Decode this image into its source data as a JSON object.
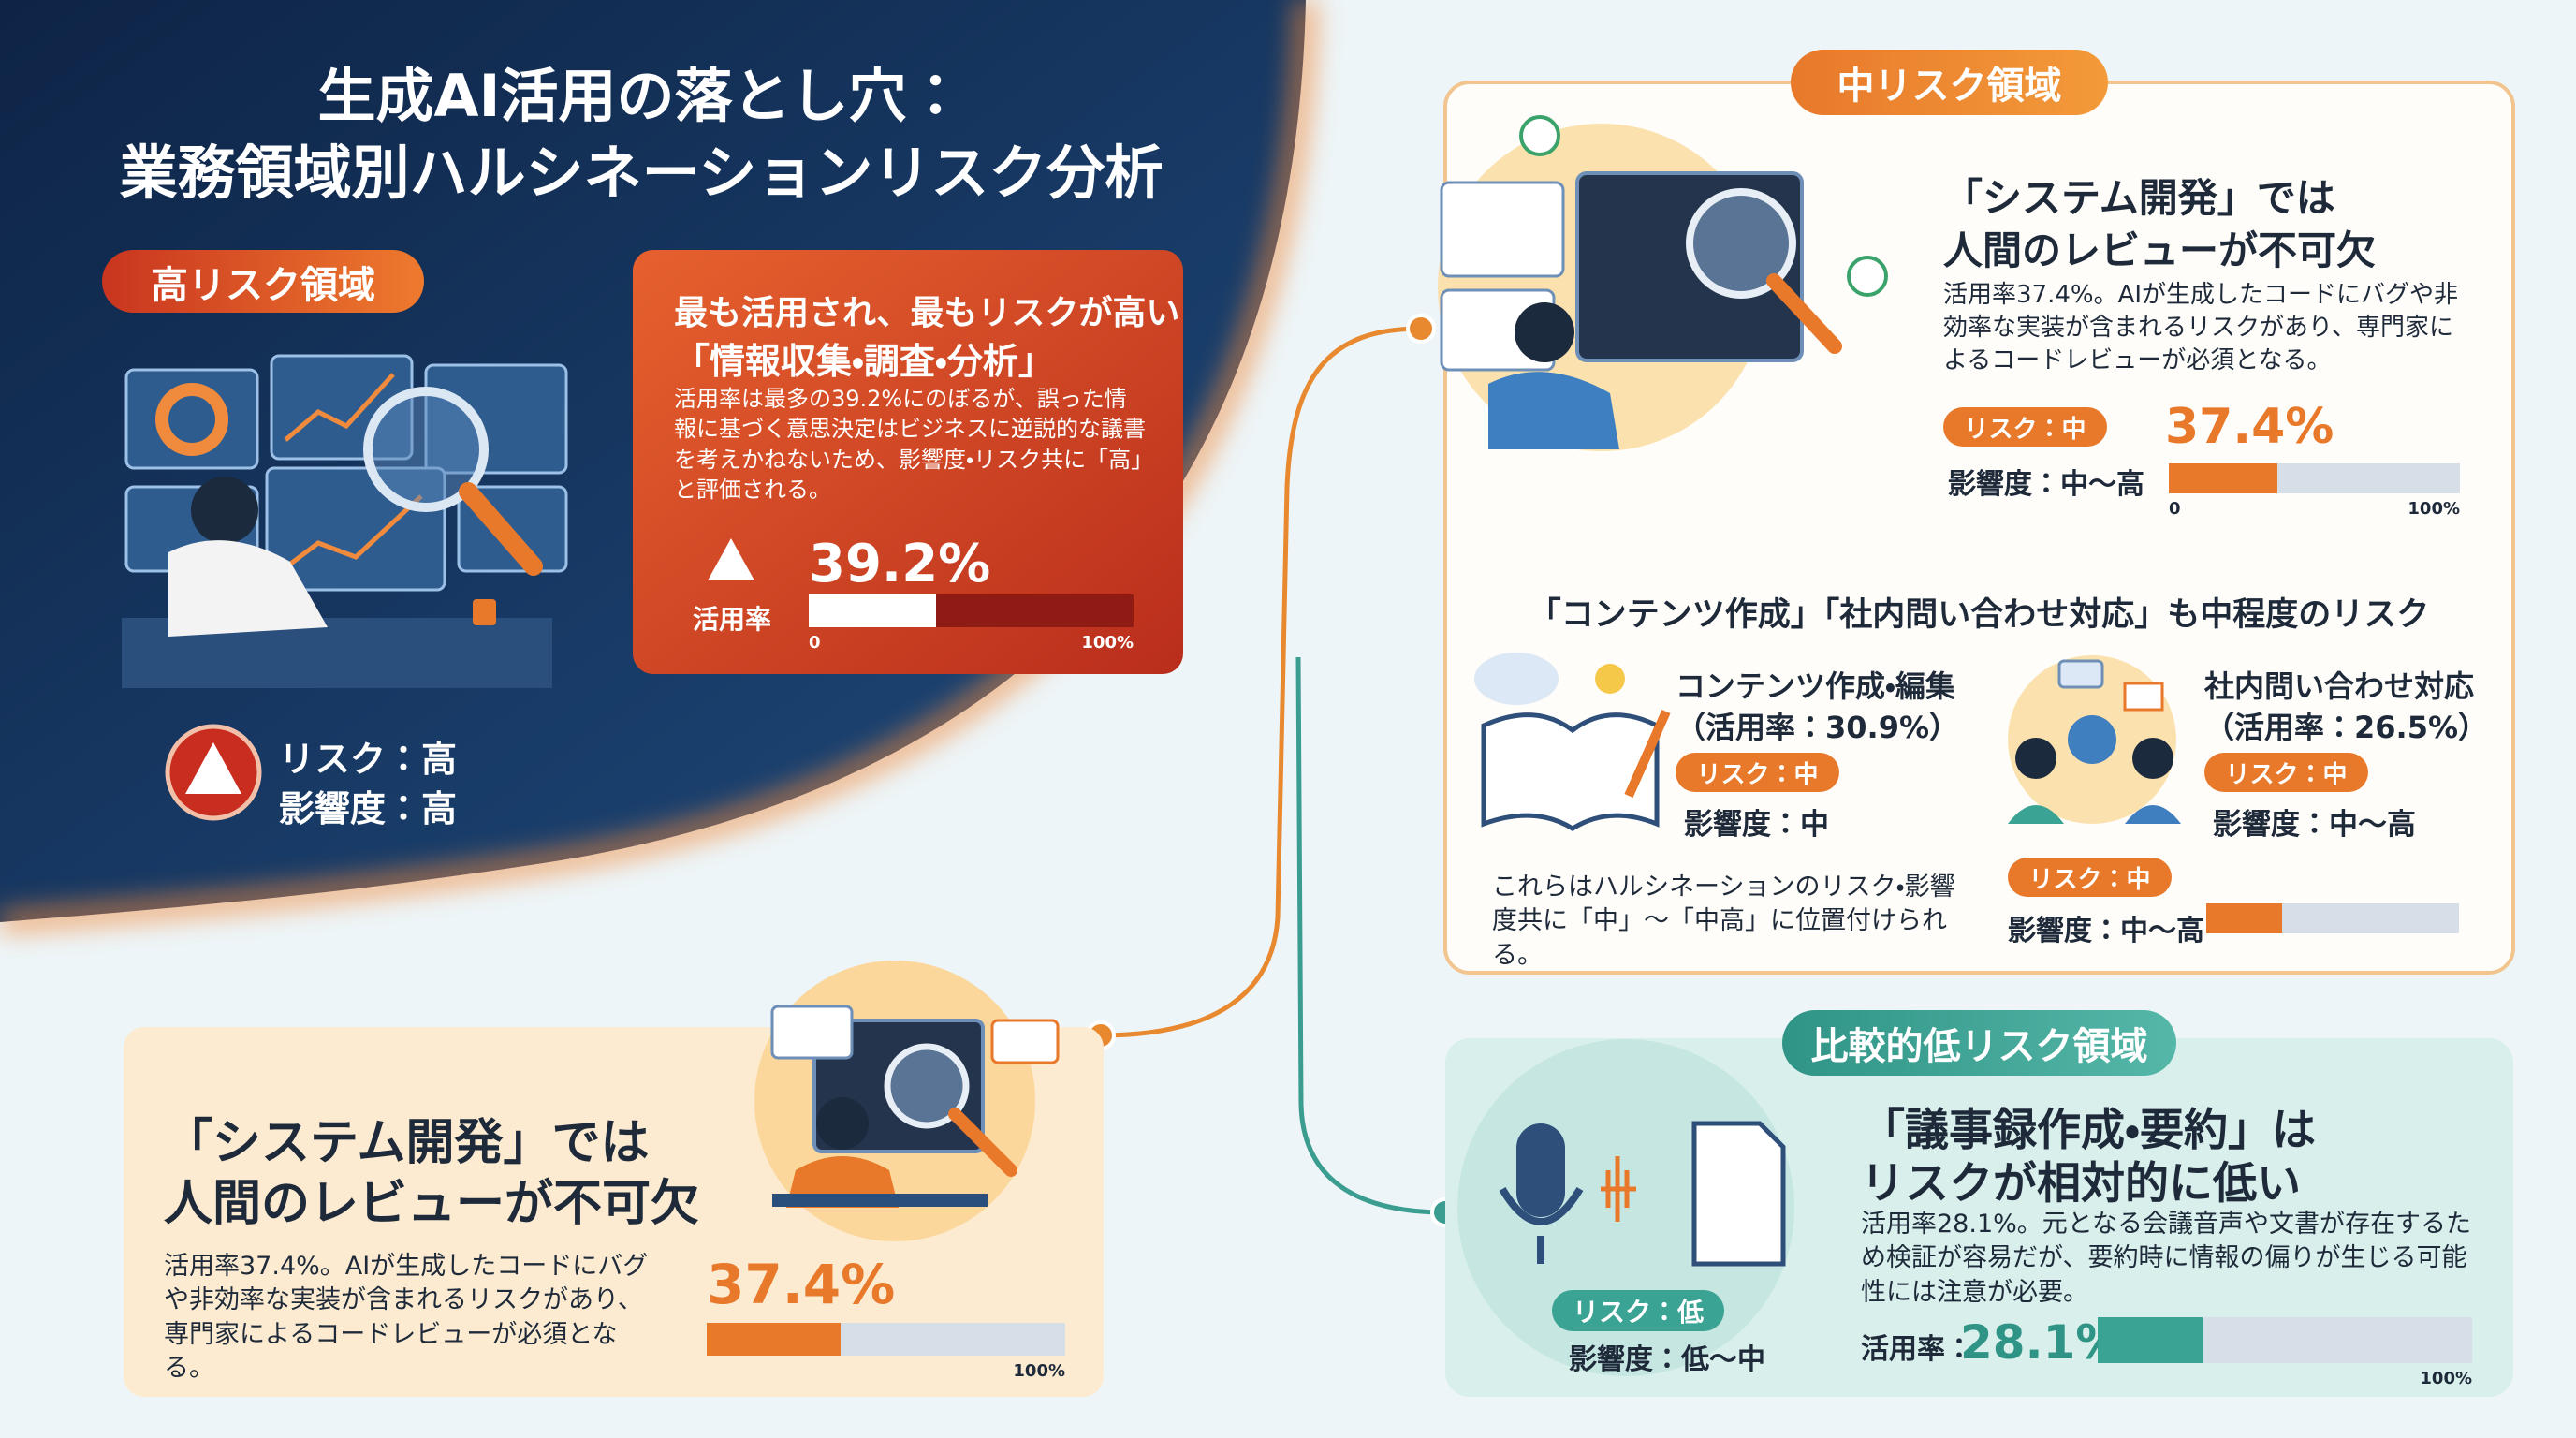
{
  "header": {
    "title": [
      "生成AI活用の落とし穴：",
      "業務領域別ハルシネーションリスク分析"
    ]
  },
  "bar_scale": [
    0,
    100
  ],
  "high_risk": {
    "badge": "高リスク領域",
    "risk": "リスク：高",
    "impact": "影響度：高",
    "headline": [
      "最も活用され、最もリスクが高い",
      "「情報収集・調査・分析」"
    ],
    "body": "活用率は最多の39.2%にのぼるが、誤った情報に基づく意思決定はビジネスに逆説的な議書を考えかねないため、影響度・リスク共に「高」と評価される。",
    "rate_label": "活用率",
    "bar": {
      "value": 39.2,
      "label": "39.2%",
      "ticks": [
        0,
        {
          "value": 100,
          "label": "100%"
        }
      ]
    }
  },
  "medium_risk": {
    "badge": "中リスク領域",
    "heading": [
      "「システム開発」では",
      "人間のレビューが不可欠"
    ],
    "body": "活用率37.4%。AIが生成したコードにバグや非効率な実装が含まれるリスクがあり、専門家によるコードレビューが必須となる。",
    "risk": "リスク：中",
    "impact": "影響度：中〜高",
    "bar": {
      "value": 37.4,
      "label": "37.4%",
      "ticks": [
        0,
        {
          "value": 100,
          "label": "100%"
        }
      ]
    },
    "subheading": "「コンテンツ作成」「社内問い合わせ対応」も中程度のリスク",
    "items": [
      {
        "name": "コンテンツ作成・編集",
        "rate": "（活用率：30.9%）",
        "risk": "リスク：中",
        "impact": "影響度：中"
      },
      {
        "name": "社内問い合わせ対応",
        "rate": "（活用率：26.5%）",
        "risk": "リスク：中",
        "impact": "影響度：中〜高"
      }
    ],
    "note": "これらはハルシネーションのリスク・影響度共に「中」〜「中高」に位置付けられる。",
    "summary": {
      "risk": "リスク：中",
      "impact": "影響度：中〜高",
      "bar": {
        "value": 30
      }
    }
  },
  "dev_card": {
    "heading": [
      "「システム開発」では",
      "人間のレビューが不可欠"
    ],
    "body": "活用率37.4%。AIが生成したコードにバグや非効率な実装が含まれるリスクがあり、専門家によるコードレビューが必須となる。",
    "bar": {
      "value": 37.4,
      "label": "37.4%",
      "ticks": [
        {
          "value": 100,
          "label": "100%"
        }
      ]
    }
  },
  "low_risk": {
    "badge": "比較的低リスク領域",
    "heading": [
      "「議事録作成・要約」は",
      "リスクが相対的に低い"
    ],
    "body": "活用率28.1%。元となる会議音声や文書が存在するため検証が容易だが、要約時に情報の偏りが生じる可能性には注意が必要。",
    "risk": "リスク：低",
    "impact": "影響度：低〜中",
    "rate_label": "活用率：",
    "bar": {
      "value": 28.1,
      "label": "28.1%",
      "ticks": [
        {
          "value": 100,
          "label": "100%"
        }
      ]
    }
  }
}
